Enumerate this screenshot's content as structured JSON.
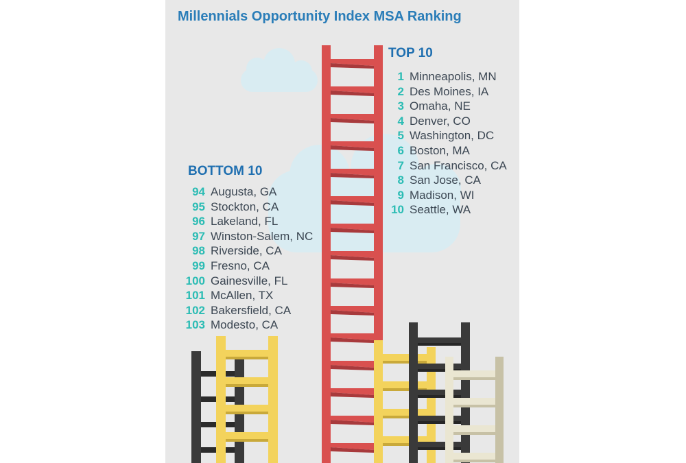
{
  "title": "Millennials Opportunity Index MSA Ranking",
  "top": {
    "heading": "TOP 10",
    "items": [
      {
        "rank": "1",
        "city": "Minneapolis, MN"
      },
      {
        "rank": "2",
        "city": "Des Moines, IA"
      },
      {
        "rank": "3",
        "city": "Omaha, NE"
      },
      {
        "rank": "4",
        "city": "Denver, CO"
      },
      {
        "rank": "5",
        "city": "Washington, DC"
      },
      {
        "rank": "6",
        "city": "Boston, MA"
      },
      {
        "rank": "7",
        "city": "San Francisco, CA"
      },
      {
        "rank": "8",
        "city": "San Jose, CA"
      },
      {
        "rank": "9",
        "city": "Madison, WI"
      },
      {
        "rank": "10",
        "city": "Seattle, WA"
      }
    ]
  },
  "bottom": {
    "heading": "BOTTOM 10",
    "items": [
      {
        "rank": "94",
        "city": "Augusta, GA"
      },
      {
        "rank": "95",
        "city": "Stockton, CA"
      },
      {
        "rank": "96",
        "city": "Lakeland, FL"
      },
      {
        "rank": "97",
        "city": "Winston-Salem, NC"
      },
      {
        "rank": "98",
        "city": "Riverside, CA"
      },
      {
        "rank": "99",
        "city": "Fresno, CA"
      },
      {
        "rank": "100",
        "city": "Gainesville, FL"
      },
      {
        "rank": "101",
        "city": "McAllen, TX"
      },
      {
        "rank": "102",
        "city": "Bakersfield, CA"
      },
      {
        "rank": "103",
        "city": "Modesto, CA"
      }
    ]
  },
  "colors": {
    "panel": "#e8e8e8",
    "title": "#2a7db8",
    "heading": "#1f6fb0",
    "rank": "#2bbcb4",
    "city": "#3b4652",
    "cloud": "#d9ecf2",
    "ladder_red": "#d9504f",
    "ladder_red_dark": "#a83a3c",
    "ladder_yellow": "#f3d35c",
    "ladder_yellow_dark": "#c9a93a",
    "ladder_black": "#3a3a3a",
    "ladder_cream": "#eae6d2",
    "ladder_cream_dark": "#c7c1a6"
  }
}
